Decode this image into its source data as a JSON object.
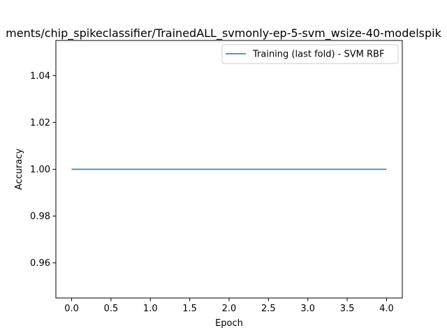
{
  "chart_data": {
    "type": "line",
    "title": "ments/chip_spikeclassifier/TrainedALL_svmonly-ep-5-svm_wsize-40-modelspik",
    "xlabel": "Epoch",
    "ylabel": "Accuracy",
    "xlim": [
      -0.2,
      4.2
    ],
    "ylim": [
      0.945,
      1.055
    ],
    "x_ticks": [
      0.0,
      0.5,
      1.0,
      1.5,
      2.0,
      2.5,
      3.0,
      3.5,
      4.0
    ],
    "x_tick_labels": [
      "0.0",
      "0.5",
      "1.0",
      "1.5",
      "2.0",
      "2.5",
      "3.0",
      "3.5",
      "4.0"
    ],
    "y_ticks": [
      0.96,
      0.98,
      1.0,
      1.02,
      1.04
    ],
    "y_tick_labels": [
      "0.96",
      "0.98",
      "1.00",
      "1.02",
      "1.04"
    ],
    "grid": false,
    "legend_position": "top-right",
    "series": [
      {
        "name": "Training (last fold) - SVM RBF",
        "color": "#1f77b4",
        "x": [
          0,
          1,
          2,
          3,
          4
        ],
        "y": [
          1.0,
          1.0,
          1.0,
          1.0,
          1.0
        ]
      }
    ]
  }
}
